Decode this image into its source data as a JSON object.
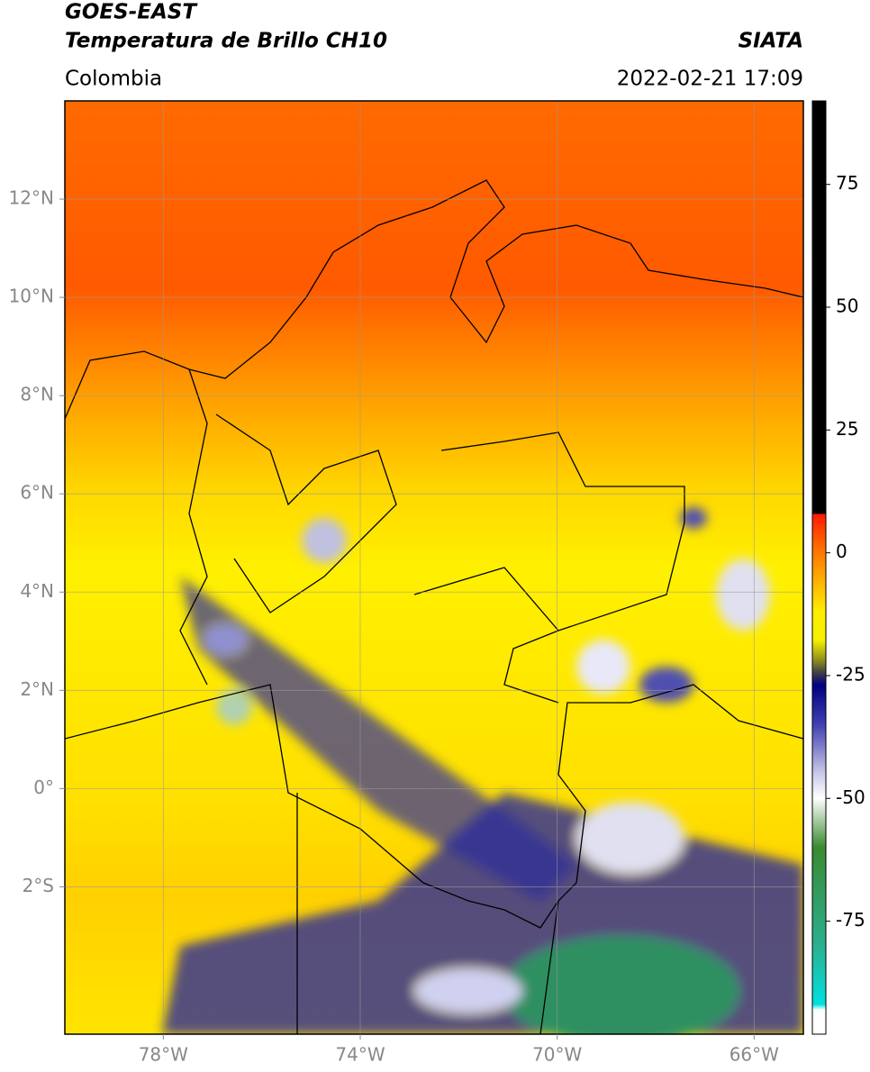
{
  "header": {
    "title": "GOES-EAST",
    "subtitle": "Temperatura de Brillo CH10",
    "source": "SIATA",
    "region": "Colombia",
    "datetime": "2022-02-21 17:09"
  },
  "map": {
    "xlim": [
      -80,
      -65
    ],
    "ylim": [
      -5,
      14
    ],
    "grid": true,
    "xticks": [
      {
        "value": -78,
        "label": "78°W"
      },
      {
        "value": -74,
        "label": "74°W"
      },
      {
        "value": -70,
        "label": "70°W"
      },
      {
        "value": -66,
        "label": "66°W"
      }
    ],
    "yticks": [
      {
        "value": 12,
        "label": "12°N"
      },
      {
        "value": 10,
        "label": "10°N"
      },
      {
        "value": 8,
        "label": "8°N"
      },
      {
        "value": 6,
        "label": "6°N"
      },
      {
        "value": 4,
        "label": "4°N"
      },
      {
        "value": 2,
        "label": "2°N"
      },
      {
        "value": 0,
        "label": "0°"
      },
      {
        "value": -2,
        "label": "2°S"
      }
    ]
  },
  "colorbar": {
    "lim": [
      -98,
      92
    ],
    "ticks": [
      75,
      50,
      25,
      0,
      -25,
      -50,
      -75
    ]
  }
}
